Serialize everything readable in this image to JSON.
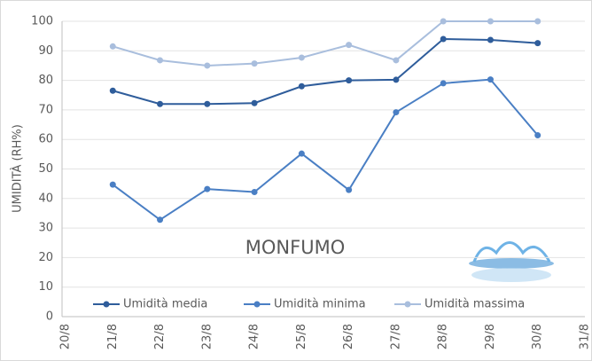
{
  "chart_data": {
    "type": "line",
    "y_label": "UMIDITÀ (RH%)",
    "annotation": "MONFUMO",
    "categories": [
      "20/8",
      "21/8",
      "22/8",
      "23/8",
      "24/8",
      "25/8",
      "26/8",
      "27/8",
      "28/8",
      "29/8",
      "30/8",
      "31/8"
    ],
    "series": [
      {
        "name": "Umidità media",
        "color": "#2f5d9b",
        "values": [
          null,
          76.5,
          72,
          72,
          72.3,
          78,
          80,
          80.2,
          94,
          93.7,
          92.6,
          null
        ]
      },
      {
        "name": "Umidità minima",
        "color": "#4a7fc4",
        "values": [
          null,
          44.7,
          32.8,
          43.2,
          42.2,
          55.2,
          42.9,
          69.2,
          79,
          80.3,
          61.4,
          null
        ]
      },
      {
        "name": "Umidità massima",
        "color": "#a9bedd",
        "values": [
          null,
          91.5,
          86.8,
          85,
          85.7,
          87.7,
          92,
          86.8,
          100,
          100,
          100,
          null
        ]
      }
    ],
    "ylim": [
      0,
      100
    ],
    "yticks": [
      0,
      10,
      20,
      30,
      40,
      50,
      60,
      70,
      80,
      90,
      100
    ],
    "grid": true
  }
}
